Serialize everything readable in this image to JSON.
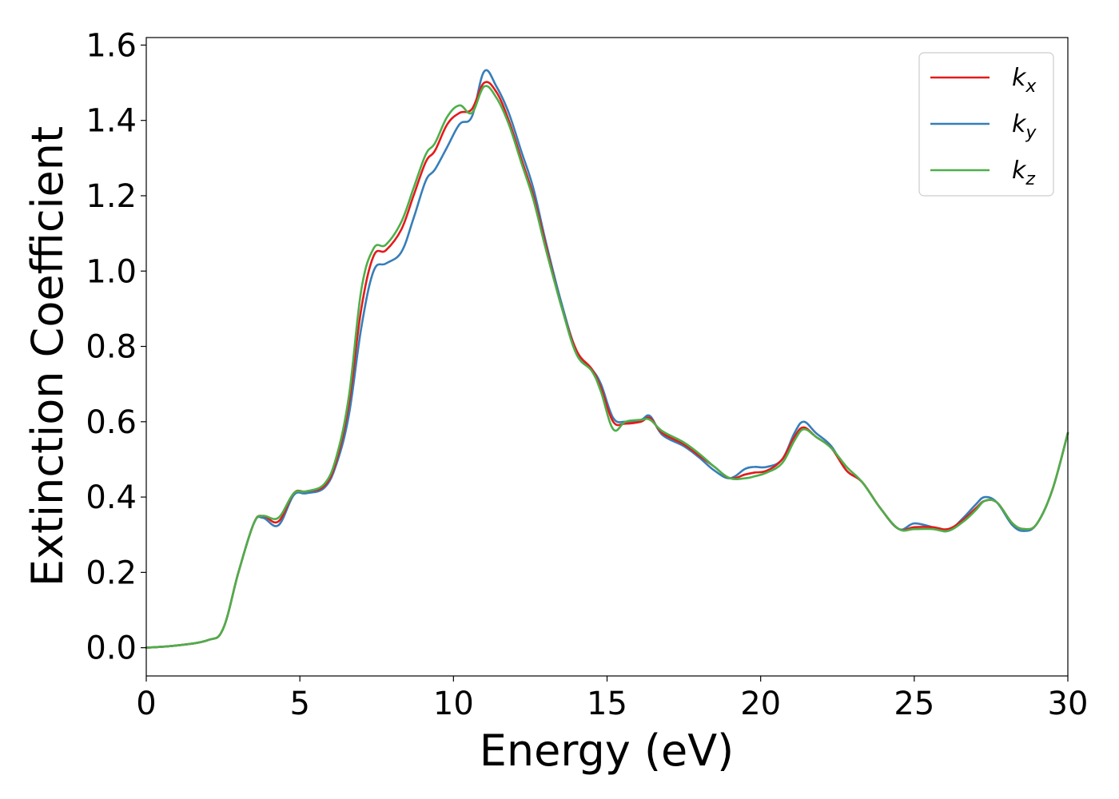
{
  "chart_data": {
    "type": "line",
    "title": "",
    "xlabel": "Energy (eV)",
    "ylabel": "Extinction Coefficient",
    "xlim": [
      0,
      30
    ],
    "ylim": [
      -0.075,
      1.62
    ],
    "xticks": [
      0,
      5,
      10,
      15,
      20,
      25,
      30
    ],
    "xtick_labels": [
      "0",
      "5",
      "10",
      "15",
      "20",
      "25",
      "30"
    ],
    "yticks": [
      0.0,
      0.2,
      0.4,
      0.6,
      0.8,
      1.0,
      1.2,
      1.4,
      1.6
    ],
    "ytick_labels": [
      "0.0",
      "0.2",
      "0.4",
      "0.6",
      "0.8",
      "1.0",
      "1.2",
      "1.4",
      "1.6"
    ],
    "grid": false,
    "legend_position": "top-right",
    "x": [
      0,
      1,
      2,
      2.5,
      3,
      3.5,
      3.8,
      4.3,
      4.8,
      5.2,
      5.8,
      6.2,
      6.6,
      7,
      7.4,
      7.8,
      8.3,
      8.7,
      9.1,
      9.4,
      9.8,
      10.2,
      10.6,
      11,
      11.4,
      11.8,
      12.2,
      12.6,
      13,
      13.5,
      14,
      14.5,
      14.8,
      15.2,
      15.6,
      16.1,
      16.4,
      16.8,
      17.5,
      18,
      18.5,
      19,
      19.5,
      19.8,
      20.2,
      20.7,
      21.1,
      21.4,
      21.8,
      22.3,
      22.8,
      23.3,
      23.9,
      24.5,
      25,
      25.6,
      26.1,
      26.6,
      27,
      27.3,
      27.7,
      28.2,
      28.6,
      29.0,
      29.5,
      30
    ],
    "series": [
      {
        "name": "k",
        "subscript": "x",
        "color": "#e41a1c",
        "values": [
          0.0,
          0.006,
          0.02,
          0.05,
          0.2,
          0.33,
          0.35,
          0.335,
          0.41,
          0.415,
          0.43,
          0.5,
          0.65,
          0.9,
          1.04,
          1.055,
          1.11,
          1.2,
          1.29,
          1.32,
          1.39,
          1.42,
          1.43,
          1.5,
          1.475,
          1.4,
          1.3,
          1.2,
          1.07,
          0.91,
          0.79,
          0.74,
          0.69,
          0.6,
          0.595,
          0.6,
          0.61,
          0.57,
          0.54,
          0.51,
          0.48,
          0.45,
          0.46,
          0.465,
          0.47,
          0.5,
          0.56,
          0.585,
          0.56,
          0.53,
          0.47,
          0.44,
          0.37,
          0.315,
          0.32,
          0.32,
          0.315,
          0.34,
          0.37,
          0.39,
          0.385,
          0.33,
          0.315,
          0.33,
          0.42,
          0.57
        ]
      },
      {
        "name": "k",
        "subscript": "y",
        "color": "#377eb8",
        "values": [
          0.0,
          0.006,
          0.02,
          0.05,
          0.2,
          0.33,
          0.345,
          0.325,
          0.405,
          0.41,
          0.425,
          0.49,
          0.62,
          0.85,
          1.0,
          1.02,
          1.05,
          1.14,
          1.24,
          1.27,
          1.33,
          1.39,
          1.41,
          1.53,
          1.49,
          1.42,
          1.32,
          1.22,
          1.08,
          0.92,
          0.79,
          0.74,
          0.7,
          0.61,
          0.6,
          0.605,
          0.615,
          0.565,
          0.535,
          0.505,
          0.47,
          0.45,
          0.475,
          0.48,
          0.48,
          0.5,
          0.57,
          0.6,
          0.57,
          0.535,
          0.47,
          0.44,
          0.37,
          0.315,
          0.33,
          0.32,
          0.31,
          0.345,
          0.38,
          0.4,
          0.385,
          0.325,
          0.31,
          0.33,
          0.42,
          0.57
        ]
      },
      {
        "name": "k",
        "subscript": "z",
        "color": "#4daf4a",
        "values": [
          0.0,
          0.006,
          0.02,
          0.05,
          0.2,
          0.33,
          0.35,
          0.345,
          0.41,
          0.415,
          0.435,
          0.51,
          0.67,
          0.95,
          1.06,
          1.07,
          1.13,
          1.22,
          1.31,
          1.34,
          1.41,
          1.44,
          1.42,
          1.49,
          1.46,
          1.39,
          1.29,
          1.19,
          1.06,
          0.91,
          0.78,
          0.735,
          0.68,
          0.58,
          0.6,
          0.605,
          0.605,
          0.575,
          0.545,
          0.515,
          0.48,
          0.45,
          0.45,
          0.455,
          0.465,
          0.49,
          0.55,
          0.58,
          0.56,
          0.53,
          0.48,
          0.44,
          0.37,
          0.315,
          0.315,
          0.315,
          0.31,
          0.335,
          0.365,
          0.39,
          0.385,
          0.33,
          0.315,
          0.33,
          0.42,
          0.57
        ]
      }
    ]
  }
}
